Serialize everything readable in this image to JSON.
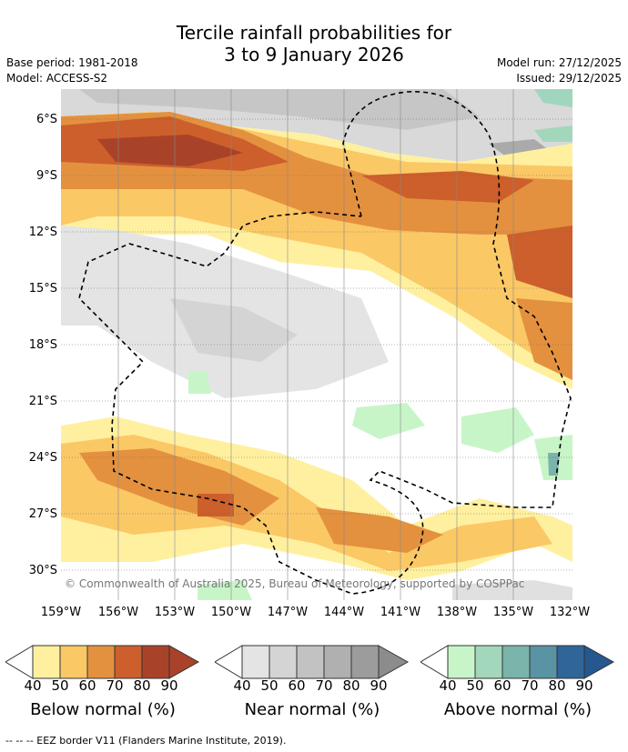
{
  "title_line1": "Tercile rainfall probabilities for",
  "title_line2": "3 to 9 January 2026",
  "base_period": "Base period: 1981-2018",
  "model": "Model: ACCESS-S2",
  "model_run": "Model run: 27/12/2025",
  "issued": "Issued: 29/12/2025",
  "copyright": "© Commonwealth of Australia 2025, Bureau of Meteorology, supported by COSPPac",
  "lat_labels": [
    "6°S",
    "9°S",
    "12°S",
    "15°S",
    "18°S",
    "21°S",
    "24°S",
    "27°S",
    "30°S"
  ],
  "lon_labels": [
    "159°W",
    "156°W",
    "153°W",
    "150°W",
    "147°W",
    "144°W",
    "141°W",
    "138°W",
    "135°W",
    "132°W"
  ],
  "legends": [
    {
      "title": "Below normal (%)",
      "ticks": [
        "40",
        "50",
        "60",
        "70",
        "80",
        "90"
      ],
      "colors": [
        "#fff0a0",
        "#fbc866",
        "#e4913f",
        "#cc5f2b",
        "#a8432a",
        "#a8432a"
      ]
    },
    {
      "title": "Near normal (%)",
      "ticks": [
        "40",
        "50",
        "60",
        "70",
        "80",
        "90"
      ],
      "colors": [
        "#e4e4e4",
        "#d4d4d4",
        "#c2c2c2",
        "#b0b0b0",
        "#9c9c9c",
        "#8c8c8c"
      ]
    },
    {
      "title": "Above normal (%)",
      "ticks": [
        "40",
        "50",
        "60",
        "70",
        "80",
        "90"
      ],
      "colors": [
        "#c8f5c8",
        "#a2d7bb",
        "#7ab4aa",
        "#5a93a3",
        "#2f6598",
        "#24588e"
      ]
    }
  ],
  "footer": "--  --  -- EEZ border V11 (Flanders Marine Institute, 2019)."
}
